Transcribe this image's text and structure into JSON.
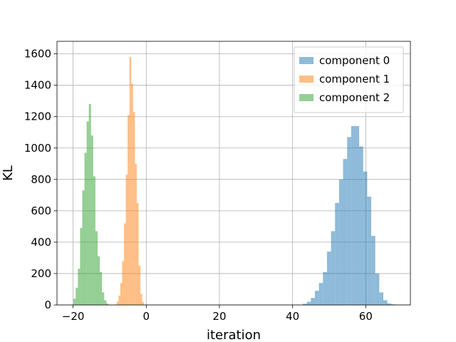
{
  "chart_data": {
    "type": "bar",
    "subtype": "histogram",
    "title": "",
    "xlabel": "iteration",
    "ylabel": "KL",
    "xlim": [
      -24.4,
      72.2
    ],
    "ylim": [
      0,
      1680
    ],
    "x_ticks": [
      -20,
      0,
      20,
      40,
      60
    ],
    "y_ticks": [
      0,
      200,
      400,
      600,
      800,
      1000,
      1200,
      1400,
      1600
    ],
    "grid": true,
    "legend_position": "top-right",
    "alpha": 0.5,
    "series": [
      {
        "name": "component 0",
        "color": "#1f77b4",
        "bin_edges": [
          42.8,
          43.9,
          45.0,
          46.1,
          47.2,
          48.3,
          49.4,
          50.5,
          51.6,
          52.7,
          53.8,
          54.9,
          56.0,
          57.1,
          58.2,
          59.3,
          60.4,
          61.5,
          62.6,
          63.7,
          64.8,
          65.9,
          67.0,
          68.1
        ],
        "counts": [
          8,
          20,
          45,
          90,
          140,
          210,
          340,
          470,
          650,
          800,
          930,
          1070,
          1140,
          1140,
          1010,
          850,
          690,
          440,
          200,
          80,
          30,
          10,
          4
        ]
      },
      {
        "name": "component 1",
        "color": "#ff7f0e",
        "bin_edges": [
          -8.6,
          -8.1,
          -7.6,
          -7.1,
          -6.6,
          -6.1,
          -5.6,
          -5.1,
          -4.6,
          -4.1,
          -3.6,
          -3.1,
          -2.6,
          -2.1,
          -1.6,
          -1.1,
          -0.6
        ],
        "counts": [
          4,
          20,
          60,
          140,
          280,
          520,
          830,
          1210,
          1580,
          1410,
          1230,
          900,
          650,
          250,
          70,
          18
        ]
      },
      {
        "name": "component 2",
        "color": "#2ca02c",
        "bin_edges": [
          -19.9,
          -19.3,
          -18.7,
          -18.1,
          -17.5,
          -16.9,
          -16.3,
          -15.7,
          -15.1,
          -14.5,
          -13.9,
          -13.3,
          -12.7,
          -12.1,
          -11.5,
          -10.9,
          -10.3
        ],
        "counts": [
          40,
          110,
          230,
          490,
          730,
          970,
          1170,
          1280,
          1080,
          820,
          470,
          310,
          210,
          80,
          30,
          10
        ]
      }
    ]
  }
}
